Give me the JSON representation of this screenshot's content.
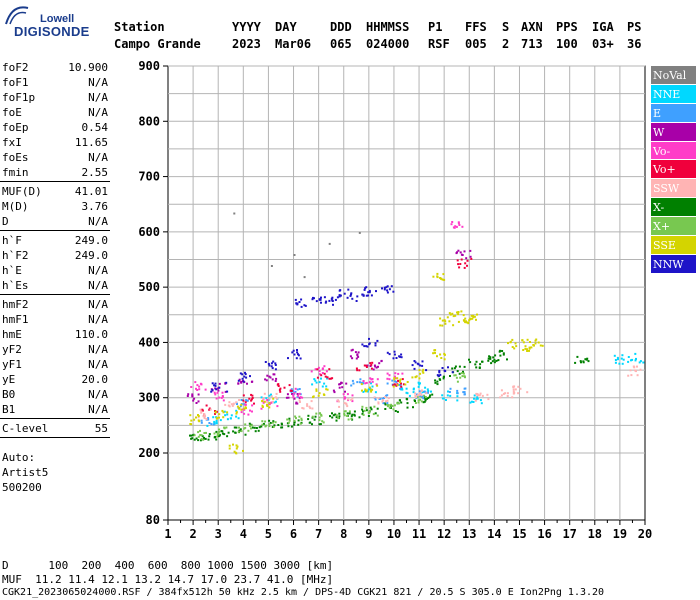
{
  "logo": {
    "line1": "Lowell",
    "line2": "DIGISONDE"
  },
  "header": {
    "row1": [
      "Station",
      "YYYY",
      "DAY",
      "DDD",
      "HHMMSS",
      "P1",
      "FFS",
      "S",
      "AXN",
      "PPS",
      "IGA",
      "PS"
    ],
    "row2": [
      "Campo Grande",
      "2023",
      "Mar06",
      "065",
      "024000",
      "RSF",
      "005",
      "2",
      "713",
      "100",
      "03+",
      "36"
    ]
  },
  "params": {
    "group1": [
      [
        "foF2",
        "10.900"
      ],
      [
        "foF1",
        "N/A"
      ],
      [
        "foF1p",
        "N/A"
      ],
      [
        "foE",
        "N/A"
      ],
      [
        "foEp",
        "0.54"
      ],
      [
        "fxI",
        "11.65"
      ],
      [
        "foEs",
        "N/A"
      ],
      [
        "fmin",
        "2.55"
      ]
    ],
    "group2": [
      [
        "MUF(D)",
        "41.01"
      ],
      [
        "M(D)",
        "3.76"
      ],
      [
        "D",
        "N/A"
      ]
    ],
    "group3": [
      [
        "h`F",
        "249.0"
      ],
      [
        "h`F2",
        "249.0"
      ],
      [
        "h`E",
        "N/A"
      ],
      [
        "h`Es",
        "N/A"
      ]
    ],
    "group4": [
      [
        "hmF2",
        "N/A"
      ],
      [
        "hmF1",
        "N/A"
      ],
      [
        "hmE",
        "110.0"
      ],
      [
        "yF2",
        "N/A"
      ],
      [
        "yF1",
        "N/A"
      ],
      [
        "yE",
        "20.0"
      ],
      [
        "B0",
        "N/A"
      ],
      [
        "B1",
        "N/A"
      ]
    ],
    "group5": [
      [
        "C-level",
        "55"
      ]
    ]
  },
  "auto": [
    "Auto:",
    "Artist5",
    "500200"
  ],
  "legend": [
    {
      "label": "NoVal",
      "color": "#808080"
    },
    {
      "label": "NNE",
      "color": "#00d8ff"
    },
    {
      "label": "E",
      "color": "#3fa0ff"
    },
    {
      "label": "W",
      "color": "#a800a8"
    },
    {
      "label": "Vo-",
      "color": "#ff3cc8"
    },
    {
      "label": "Vo+",
      "color": "#f0003c"
    },
    {
      "label": "SSW",
      "color": "#ffb4b4"
    },
    {
      "label": "X-",
      "color": "#008000"
    },
    {
      "label": "X+",
      "color": "#78c850"
    },
    {
      "label": "SSE",
      "color": "#d4d400"
    },
    {
      "label": "NNW",
      "color": "#1e14c8"
    }
  ],
  "footer": {
    "line1": "D      100  200  400  600  800 1000 1500 3000 [km]",
    "line2": "MUF  11.2 11.4 12.1 13.2 14.7 17.0 23.7 41.0 [MHz]",
    "line3": "CGK21_2023065024000.RSF / 384fx512h 50 kHz 2.5 km / DPS-4D CGK21 821 / 20.5 S 305.0 E Ion2Png 1.3.20"
  },
  "chart_data": {
    "type": "scatter",
    "xlim": [
      1,
      20
    ],
    "ylim": [
      80,
      900
    ],
    "x_ticks": [
      1,
      2,
      3,
      4,
      5,
      6,
      7,
      8,
      9,
      10,
      11,
      12,
      13,
      14,
      15,
      16,
      17,
      18,
      19,
      20
    ],
    "y_ticks": [
      80,
      200,
      300,
      400,
      500,
      600,
      700,
      800,
      900
    ],
    "y_grid_step": 50,
    "grid": true,
    "series": [
      {
        "name": "X-",
        "color": "#008000",
        "points": [
          [
            2.1,
            228
          ],
          [
            2.6,
            232
          ],
          [
            3.2,
            236
          ],
          [
            3.8,
            242
          ],
          [
            4.5,
            247
          ],
          [
            5.2,
            252
          ],
          [
            6,
            257
          ],
          [
            6.8,
            262
          ],
          [
            7.5,
            266
          ],
          [
            8.3,
            271
          ],
          [
            9,
            277
          ],
          [
            9.8,
            284
          ],
          [
            10.5,
            292
          ],
          [
            11.2,
            300
          ],
          [
            11.8,
            334
          ],
          [
            12.5,
            350
          ],
          [
            13.2,
            362
          ],
          [
            13.8,
            372
          ],
          [
            14.2,
            378
          ],
          [
            17.4,
            368
          ]
        ]
      },
      {
        "name": "X+",
        "color": "#78c850",
        "points": [
          [
            2.3,
            234
          ],
          [
            3,
            240
          ],
          [
            4,
            246
          ],
          [
            5,
            254
          ],
          [
            6,
            260
          ],
          [
            7,
            266
          ],
          [
            8,
            270
          ],
          [
            9,
            278
          ],
          [
            10,
            288
          ],
          [
            11,
            298
          ],
          [
            12.6,
            338
          ]
        ]
      },
      {
        "name": "NNE",
        "color": "#00d8ff",
        "points": [
          [
            2.8,
            258
          ],
          [
            3.5,
            270
          ],
          [
            5,
            300
          ],
          [
            7,
            330
          ],
          [
            9,
            320
          ],
          [
            10.5,
            310
          ],
          [
            11.2,
            320
          ],
          [
            12.2,
            305
          ],
          [
            13.3,
            300
          ],
          [
            18.8,
            370
          ],
          [
            19.6,
            372
          ]
        ]
      },
      {
        "name": "E",
        "color": "#3fa0ff",
        "points": [
          [
            2.5,
            262
          ],
          [
            4,
            290
          ],
          [
            6,
            310
          ],
          [
            8.5,
            330
          ],
          [
            9.5,
            300
          ],
          [
            10,
            325
          ],
          [
            11,
            305
          ],
          [
            12.5,
            310
          ]
        ]
      },
      {
        "name": "W",
        "color": "#a800a8",
        "points": [
          [
            2,
            300
          ],
          [
            3,
            320
          ],
          [
            4,
            330
          ],
          [
            5,
            340
          ],
          [
            6,
            300
          ],
          [
            7.8,
            320
          ],
          [
            8.5,
            380
          ],
          [
            9.2,
            360
          ],
          [
            12.7,
            560
          ]
        ]
      },
      {
        "name": "Vo-",
        "color": "#ff3cc8",
        "points": [
          [
            2.2,
            322
          ],
          [
            3,
            302
          ],
          [
            4,
            280
          ],
          [
            5,
            290
          ],
          [
            6,
            310
          ],
          [
            7,
            350
          ],
          [
            8,
            300
          ],
          [
            9,
            330
          ],
          [
            10,
            340
          ],
          [
            12.4,
            612
          ]
        ]
      },
      {
        "name": "Vo+",
        "color": "#f0003c",
        "points": [
          [
            2.6,
            280
          ],
          [
            4.2,
            300
          ],
          [
            5.6,
            320
          ],
          [
            7.2,
            345
          ],
          [
            8.8,
            360
          ],
          [
            10.2,
            330
          ],
          [
            12.8,
            545
          ]
        ]
      },
      {
        "name": "SSW",
        "color": "#ffb4b4",
        "points": [
          [
            2.4,
            272
          ],
          [
            3.5,
            290
          ],
          [
            5,
            300
          ],
          [
            6.5,
            290
          ],
          [
            8,
            292
          ],
          [
            9.5,
            295
          ],
          [
            11,
            310
          ],
          [
            13.5,
            305
          ],
          [
            14.5,
            310
          ],
          [
            15,
            318
          ],
          [
            19.6,
            350
          ]
        ]
      },
      {
        "name": "SSE",
        "color": "#d4d400",
        "points": [
          [
            2,
            262
          ],
          [
            3,
            272
          ],
          [
            4,
            282
          ],
          [
            5,
            292
          ],
          [
            7,
            310
          ],
          [
            9,
            320
          ],
          [
            10.2,
            330
          ],
          [
            11,
            345
          ],
          [
            11.8,
            380
          ],
          [
            12,
            440
          ],
          [
            12.4,
            450
          ],
          [
            12.8,
            445
          ],
          [
            13,
            445
          ],
          [
            14.8,
            400
          ],
          [
            15.2,
            395
          ],
          [
            15.6,
            400
          ],
          [
            11.7,
            520
          ],
          [
            3.7,
            210
          ]
        ]
      },
      {
        "name": "NNW",
        "color": "#1e14c8",
        "points": [
          [
            3,
            320
          ],
          [
            4,
            340
          ],
          [
            5,
            360
          ],
          [
            6,
            380
          ],
          [
            6.2,
            475
          ],
          [
            7,
            480
          ],
          [
            8,
            490
          ],
          [
            9,
            495
          ],
          [
            9.8,
            498
          ],
          [
            8.5,
            485
          ],
          [
            7.5,
            478
          ],
          [
            9,
            400
          ],
          [
            10,
            380
          ],
          [
            11,
            360
          ],
          [
            12,
            350
          ]
        ]
      },
      {
        "name": "NoVal",
        "color": "#808080",
        "points": [
          [
            3.6,
            635
          ],
          [
            5.1,
            540
          ],
          [
            6,
            560
          ],
          [
            7.4,
            580
          ],
          [
            8.6,
            600
          ],
          [
            6.4,
            520
          ]
        ]
      }
    ]
  }
}
